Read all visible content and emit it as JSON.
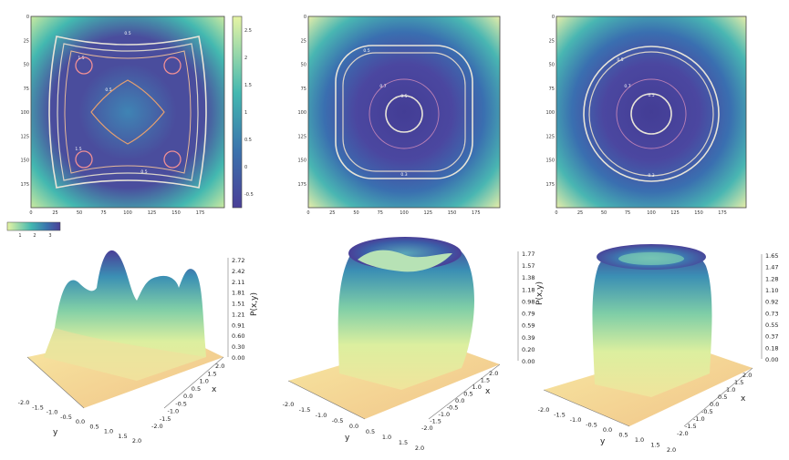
{
  "colors": {
    "colormap": [
      "#4a3f97",
      "#5a4f9f",
      "#3b73ad",
      "#2a97b6",
      "#43b8b0",
      "#7fcea7",
      "#b8e3a5",
      "#e6f4a4",
      "#f8f0a6",
      "#f6d191",
      "#efb57e"
    ],
    "contour_line": "#e8e4d8"
  },
  "chart_data": [
    {
      "type": "heatmap",
      "id": "panel-top-1",
      "xticks": [
        "0",
        "25",
        "50",
        "75",
        "100",
        "125",
        "150",
        "175"
      ],
      "yticks": [
        "0",
        "25",
        "50",
        "75",
        "100",
        "125",
        "150",
        "175"
      ],
      "contour_levels": [
        "0.5",
        "1.5",
        "0.5",
        "0.5",
        "1.5"
      ],
      "colorbar": {
        "ticks": [
          "2.5",
          "2",
          "1.5",
          "1",
          "0.5",
          "0",
          "-0.5"
        ]
      },
      "grid": false
    },
    {
      "type": "heatmap",
      "id": "panel-top-2",
      "xticks": [
        "0",
        "25",
        "50",
        "75",
        "100",
        "125",
        "150",
        "175"
      ],
      "yticks": [
        "0",
        "25",
        "50",
        "75",
        "100",
        "125",
        "150",
        "175"
      ],
      "contour_levels": [
        "0.5",
        "0.7",
        "0.5",
        "0.3"
      ],
      "grid": false
    },
    {
      "type": "heatmap",
      "id": "panel-top-3",
      "xticks": [
        "0",
        "25",
        "50",
        "75",
        "100",
        "125",
        "150",
        "175"
      ],
      "yticks": [
        "0",
        "25",
        "50",
        "75",
        "100",
        "125",
        "150",
        "175"
      ],
      "contour_levels": [
        "0.5",
        "0.7",
        "0.5",
        "0.3"
      ],
      "grid": false
    },
    {
      "type": "colorbar",
      "id": "small-horizontal-colorbar",
      "ticks": [
        "1",
        "2",
        "3"
      ]
    },
    {
      "type": "surface",
      "id": "surface-1",
      "xlabel": "x",
      "ylabel": "y",
      "zlabel": "P(x,y)",
      "xticks": [
        "2.0",
        "1.5",
        "1.0",
        "0.5",
        "0.0",
        "-0.5",
        "-1.0",
        "-1.5",
        "-2.0"
      ],
      "yticks": [
        "-2.0",
        "-1.5",
        "-1.0",
        "-0.5",
        "0.0",
        "0.5",
        "1.0",
        "1.5",
        "2.0"
      ],
      "zticks": [
        "2.72",
        "2.42",
        "2.11",
        "1.81",
        "1.51",
        "1.21",
        "0.91",
        "0.60",
        "0.30",
        "0.00"
      ],
      "zlim": [
        0.0,
        2.72
      ],
      "shape": "four peaks"
    },
    {
      "type": "surface",
      "id": "surface-2",
      "xlabel": "x",
      "ylabel": "y",
      "zlabel": "P(x,y)",
      "xticks": [
        "2.0",
        "1.5",
        "1.0",
        "0.5",
        "0.0",
        "-0.5",
        "-1.0",
        "-1.5",
        "-2.0"
      ],
      "yticks": [
        "-2.0",
        "-1.5",
        "-1.0",
        "-0.5",
        "0.0",
        "0.5",
        "1.0",
        "1.5",
        "2.0"
      ],
      "zticks": [
        "1.77",
        "1.57",
        "1.38",
        "1.18",
        "0.98",
        "0.79",
        "0.59",
        "0.39",
        "0.20",
        "0.00"
      ],
      "zlim": [
        0.0,
        1.77
      ],
      "shape": "wavy crater"
    },
    {
      "type": "surface",
      "id": "surface-3",
      "xlabel": "x",
      "ylabel": "y",
      "zlabel": "",
      "xticks": [
        "2.0",
        "1.5",
        "1.0",
        "0.5",
        "0.0",
        "-0.5",
        "-1.0",
        "-1.5",
        "-2.0"
      ],
      "yticks": [
        "-2.0",
        "-1.5",
        "-1.0",
        "-0.5",
        "0.0",
        "0.5",
        "1.0",
        "1.5",
        "2.0"
      ],
      "zticks": [
        "1.65",
        "1.47",
        "1.28",
        "1.10",
        "0.92",
        "0.73",
        "0.55",
        "0.37",
        "0.18",
        "0.00"
      ],
      "zlim": [
        0.0,
        1.65
      ],
      "shape": "ring crater"
    }
  ]
}
